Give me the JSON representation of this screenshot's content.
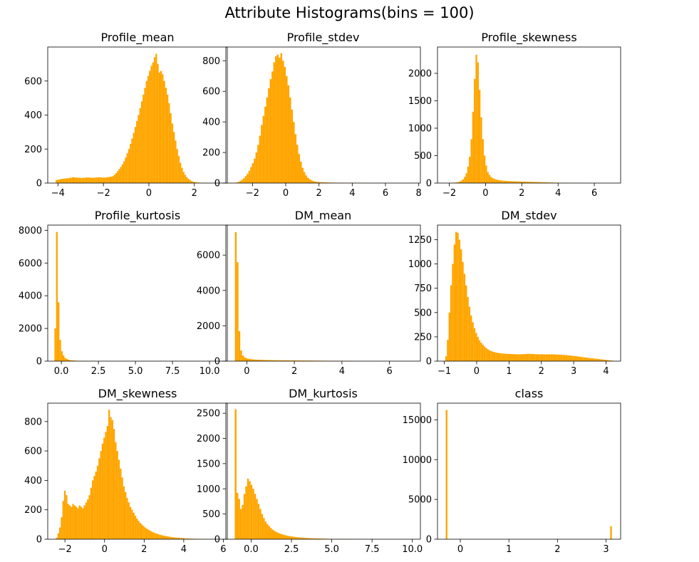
{
  "figure_title": "Attribute Histograms(bins = 100)",
  "bar_color": "#FFA500",
  "chart_data": [
    {
      "type": "bar",
      "title": "Profile_mean",
      "xlim": [
        -4.45,
        3.45
      ],
      "ylim": [
        0,
        800
      ],
      "xticks": [
        -4,
        -2,
        0,
        2
      ],
      "xtick_labels": [
        "−4",
        "−2",
        "0",
        "2"
      ],
      "yticks": [
        0,
        200,
        400,
        600
      ],
      "ytick_labels": [
        "0",
        "200",
        "400",
        "600"
      ],
      "bin_edges": [
        -4.1,
        2.98
      ],
      "bins": 100,
      "counts": [
        18,
        20,
        22,
        24,
        25,
        26,
        28,
        28,
        30,
        32,
        33,
        34,
        33,
        32,
        31,
        30,
        30,
        31,
        32,
        33,
        33,
        32,
        31,
        31,
        32,
        33,
        34,
        34,
        33,
        32,
        32,
        33,
        35,
        36,
        38,
        40,
        48,
        58,
        70,
        82,
        95,
        110,
        128,
        150,
        175,
        200,
        230,
        262,
        295,
        330,
        365,
        400,
        440,
        480,
        520,
        560,
        600,
        630,
        660,
        690,
        710,
        740,
        760,
        700,
        650,
        660,
        640,
        600,
        560,
        520,
        470,
        410,
        350,
        300,
        250,
        200,
        160,
        120,
        90,
        65,
        48,
        35,
        25,
        18,
        12,
        8,
        6,
        4,
        3,
        2,
        2,
        1,
        1,
        1,
        1,
        0,
        0,
        0,
        0,
        1
      ]
    },
    {
      "type": "bar",
      "title": "Profile_stdev",
      "xlim": [
        -3.6,
        8.1
      ],
      "ylim": [
        0,
        890
      ],
      "xticks": [
        -2,
        0,
        2,
        4,
        6,
        8
      ],
      "xtick_labels": [
        "−2",
        "0",
        "2",
        "4",
        "6",
        "8"
      ],
      "yticks": [
        0,
        200,
        400,
        600,
        800
      ],
      "ytick_labels": [
        "0",
        "200",
        "400",
        "600",
        "800"
      ],
      "bin_edges": [
        -3.1,
        7.6
      ],
      "bins": 100,
      "counts": [
        2,
        4,
        8,
        14,
        22,
        32,
        45,
        60,
        80,
        105,
        130,
        160,
        200,
        250,
        310,
        380,
        440,
        500,
        560,
        620,
        680,
        730,
        790,
        830,
        840,
        820,
        850,
        800,
        760,
        700,
        640,
        560,
        480,
        400,
        320,
        250,
        190,
        140,
        100,
        72,
        50,
        35,
        25,
        18,
        13,
        10,
        8,
        7,
        6,
        5,
        5,
        4,
        4,
        3,
        3,
        3,
        2,
        2,
        2,
        2,
        2,
        2,
        1,
        1,
        1,
        1,
        1,
        1,
        1,
        1,
        1,
        0,
        0,
        1,
        0,
        0,
        0,
        0,
        0,
        0,
        0,
        0,
        0,
        0,
        0,
        0,
        0,
        0,
        0,
        0,
        0,
        0,
        0,
        0,
        0,
        0,
        0,
        0,
        0,
        1
      ]
    },
    {
      "type": "bar",
      "title": "Profile_skewness",
      "xlim": [
        -2.65,
        7.45
      ],
      "ylim": [
        0,
        2480
      ],
      "xticks": [
        -2,
        0,
        2,
        4,
        6
      ],
      "xtick_labels": [
        "−2",
        "0",
        "2",
        "4",
        "6"
      ],
      "yticks": [
        0,
        500,
        1000,
        1500,
        2000
      ],
      "ytick_labels": [
        "0",
        "500",
        "1000",
        "1500",
        "2000"
      ],
      "bin_edges": [
        -2.1,
        7.0
      ],
      "bins": 100,
      "counts": [
        1,
        2,
        3,
        5,
        8,
        12,
        18,
        28,
        45,
        70,
        110,
        180,
        300,
        480,
        800,
        1300,
        1900,
        2340,
        2200,
        1700,
        1200,
        800,
        500,
        320,
        200,
        150,
        110,
        90,
        75,
        65,
        58,
        52,
        48,
        45,
        42,
        40,
        38,
        36,
        34,
        33,
        32,
        31,
        30,
        29,
        28,
        27,
        26,
        25,
        24,
        23,
        22,
        22,
        21,
        20,
        19,
        18,
        17,
        16,
        15,
        14,
        13,
        12,
        11,
        10,
        9,
        8,
        7,
        6,
        5,
        4,
        4,
        3,
        3,
        2,
        2,
        1,
        1,
        1,
        1,
        1,
        1,
        0,
        0,
        0,
        0,
        0,
        0,
        0,
        0,
        0,
        0,
        0,
        0,
        0,
        0,
        0,
        0,
        0,
        0,
        1
      ]
    },
    {
      "type": "bar",
      "title": "Profile_kurtosis",
      "xlim": [
        -0.92,
        11.2
      ],
      "ylim": [
        0,
        8320
      ],
      "xticks": [
        0.0,
        2.5,
        5.0,
        7.5,
        10.0
      ],
      "xtick_labels": [
        "0.0",
        "2.5",
        "5.0",
        "7.5",
        "10.0"
      ],
      "yticks": [
        0,
        2000,
        4000,
        6000,
        8000
      ],
      "ytick_labels": [
        "0",
        "2000",
        "4000",
        "6000",
        "8000"
      ],
      "bin_edges": [
        -0.47,
        10.72
      ],
      "bins": 100,
      "counts": [
        2000,
        7900,
        3600,
        1300,
        600,
        350,
        200,
        130,
        90,
        65,
        50,
        40,
        32,
        26,
        22,
        18,
        15,
        13,
        11,
        10,
        9,
        8,
        7,
        6,
        6,
        5,
        5,
        4,
        4,
        4,
        3,
        3,
        3,
        3,
        2,
        2,
        2,
        2,
        2,
        2,
        2,
        1,
        1,
        1,
        1,
        1,
        1,
        1,
        1,
        1,
        1,
        1,
        1,
        1,
        1,
        1,
        1,
        0,
        0,
        0,
        0,
        0,
        0,
        0,
        0,
        0,
        0,
        0,
        0,
        0,
        0,
        0,
        0,
        0,
        0,
        0,
        0,
        0,
        0,
        0,
        0,
        0,
        0,
        0,
        0,
        0,
        0,
        0,
        0,
        0,
        0,
        0,
        0,
        0,
        0,
        0,
        0,
        0,
        0,
        1
      ]
    },
    {
      "type": "bar",
      "title": "DM_mean",
      "xlim": [
        -0.88,
        7.3
      ],
      "ylim": [
        0,
        7700
      ],
      "xticks": [
        0,
        2,
        4,
        6
      ],
      "xtick_labels": [
        "0",
        "2",
        "4",
        "6"
      ],
      "yticks": [
        0,
        2000,
        4000,
        6000
      ],
      "ytick_labels": [
        "0",
        "2000",
        "4000",
        "6000"
      ],
      "bin_edges": [
        -0.5,
        6.95
      ],
      "bins": 100,
      "counts": [
        7300,
        5600,
        1700,
        600,
        320,
        220,
        170,
        140,
        120,
        105,
        95,
        88,
        82,
        78,
        74,
        70,
        67,
        64,
        62,
        60,
        58,
        56,
        54,
        52,
        50,
        49,
        48,
        47,
        46,
        45,
        44,
        43,
        42,
        41,
        40,
        39,
        38,
        37,
        36,
        35,
        34,
        33,
        32,
        31,
        30,
        29,
        28,
        27,
        26,
        25,
        24,
        23,
        22,
        21,
        20,
        19,
        18,
        17,
        16,
        15,
        14,
        13,
        12,
        11,
        10,
        9,
        8,
        7,
        6,
        5,
        4,
        3,
        3,
        2,
        2,
        2,
        1,
        1,
        1,
        1,
        1,
        1,
        0,
        0,
        0,
        0,
        0,
        0,
        0,
        0,
        0,
        0,
        0,
        0,
        0,
        0,
        0,
        0,
        0,
        0
      ]
    },
    {
      "type": "bar",
      "title": "DM_stdev",
      "xlim": [
        -1.21,
        4.45
      ],
      "ylim": [
        0,
        1400
      ],
      "xticks": [
        -1,
        0,
        1,
        2,
        3,
        4
      ],
      "xtick_labels": [
        "−1",
        "0",
        "1",
        "2",
        "3",
        "4"
      ],
      "yticks": [
        0,
        250,
        500,
        750,
        1000,
        1250
      ],
      "ytick_labels": [
        "0",
        "250",
        "500",
        "750",
        "1000",
        "1250"
      ],
      "bin_edges": [
        -0.97,
        4.2
      ],
      "bins": 100,
      "counts": [
        50,
        220,
        500,
        780,
        1000,
        1200,
        1330,
        1320,
        1250,
        1150,
        1020,
        900,
        780,
        660,
        560,
        470,
        400,
        340,
        290,
        250,
        215,
        190,
        170,
        150,
        135,
        122,
        112,
        104,
        97,
        92,
        88,
        85,
        82,
        80,
        78,
        77,
        76,
        75,
        74,
        73,
        72,
        71,
        70,
        70,
        70,
        71,
        72,
        73,
        74,
        75,
        75,
        74,
        73,
        72,
        71,
        70,
        70,
        70,
        70,
        70,
        70,
        70,
        70,
        70,
        70,
        69,
        68,
        67,
        66,
        65,
        64,
        63,
        62,
        60,
        58,
        56,
        54,
        52,
        50,
        48,
        45,
        42,
        40,
        38,
        36,
        34,
        32,
        30,
        28,
        26,
        24,
        22,
        20,
        18,
        16,
        14,
        12,
        10,
        8,
        6
      ]
    },
    {
      "type": "bar",
      "title": "DM_skewness",
      "xlim": [
        -2.87,
        6.2
      ],
      "ylim": [
        0,
        925
      ],
      "xticks": [
        -2,
        0,
        2,
        4,
        6
      ],
      "xtick_labels": [
        "−2",
        "0",
        "2",
        "4",
        "6"
      ],
      "yticks": [
        0,
        200,
        400,
        600,
        800
      ],
      "ytick_labels": [
        "0",
        "200",
        "400",
        "600",
        "800"
      ],
      "bin_edges": [
        -2.46,
        5.82
      ],
      "bins": 100,
      "counts": [
        10,
        40,
        80,
        150,
        260,
        330,
        300,
        240,
        230,
        220,
        240,
        230,
        220,
        210,
        230,
        220,
        210,
        230,
        250,
        270,
        300,
        350,
        400,
        430,
        460,
        500,
        550,
        600,
        650,
        690,
        730,
        770,
        880,
        830,
        810,
        750,
        660,
        600,
        540,
        480,
        420,
        360,
        320,
        280,
        250,
        220,
        200,
        180,
        160,
        140,
        125,
        110,
        100,
        90,
        80,
        72,
        65,
        58,
        52,
        47,
        42,
        38,
        34,
        31,
        28,
        25,
        23,
        21,
        19,
        17,
        15,
        13,
        12,
        11,
        10,
        9,
        8,
        7,
        6,
        5,
        5,
        4,
        4,
        3,
        3,
        3,
        2,
        2,
        2,
        2,
        1,
        1,
        1,
        1,
        1,
        1,
        1,
        1,
        1,
        1
      ]
    },
    {
      "type": "bar",
      "title": "DM_kurtosis",
      "xlim": [
        -1.57,
        10.5
      ],
      "ylim": [
        0,
        2700
      ],
      "xticks": [
        0.0,
        2.5,
        5.0,
        7.5,
        10.0
      ],
      "xtick_labels": [
        "0.0",
        "2.5",
        "5.0",
        "7.5",
        "10.0"
      ],
      "yticks": [
        0,
        500,
        1000,
        1500,
        2000,
        2500
      ],
      "ytick_labels": [
        "0",
        "500",
        "1000",
        "1500",
        "2000",
        "2500"
      ],
      "bin_edges": [
        -1.02,
        9.95
      ],
      "bins": 100,
      "counts": [
        2580,
        920,
        800,
        600,
        680,
        900,
        1050,
        1200,
        1150,
        1080,
        1000,
        900,
        800,
        700,
        600,
        500,
        420,
        350,
        300,
        260,
        220,
        190,
        165,
        145,
        128,
        113,
        100,
        90,
        80,
        72,
        65,
        59,
        53,
        48,
        44,
        40,
        36,
        33,
        30,
        27,
        25,
        23,
        21,
        19,
        17,
        16,
        15,
        14,
        13,
        12,
        11,
        10,
        9,
        8,
        7,
        7,
        6,
        6,
        5,
        5,
        4,
        4,
        3,
        3,
        3,
        2,
        2,
        2,
        2,
        1,
        1,
        1,
        1,
        1,
        1,
        1,
        1,
        1,
        1,
        1,
        0,
        0,
        0,
        0,
        0,
        0,
        0,
        0,
        0,
        0,
        0,
        0,
        0,
        0,
        0,
        0,
        0,
        0,
        0,
        0
      ]
    },
    {
      "type": "bar",
      "title": "class",
      "xlim": [
        -0.47,
        3.3
      ],
      "ylim": [
        0,
        17100
      ],
      "xticks": [
        0,
        1,
        2,
        3
      ],
      "xtick_labels": [
        "0",
        "1",
        "2",
        "3"
      ],
      "yticks": [
        0,
        5000,
        10000,
        15000
      ],
      "ytick_labels": [
        "0",
        "5000",
        "10000",
        "15000"
      ],
      "bin_edges": [
        -0.3,
        3.12
      ],
      "bins": 100,
      "counts": [
        16250,
        0,
        0,
        0,
        0,
        0,
        0,
        0,
        0,
        0,
        0,
        0,
        0,
        0,
        0,
        0,
        0,
        0,
        0,
        0,
        0,
        0,
        0,
        0,
        0,
        0,
        0,
        0,
        0,
        0,
        0,
        0,
        0,
        0,
        0,
        0,
        0,
        0,
        0,
        0,
        0,
        0,
        0,
        0,
        0,
        0,
        0,
        0,
        0,
        0,
        0,
        0,
        0,
        0,
        0,
        0,
        0,
        0,
        0,
        0,
        0,
        0,
        0,
        0,
        0,
        0,
        0,
        0,
        0,
        0,
        0,
        0,
        0,
        0,
        0,
        0,
        0,
        0,
        0,
        0,
        0,
        0,
        0,
        0,
        0,
        0,
        0,
        0,
        0,
        0,
        0,
        0,
        0,
        0,
        0,
        0,
        0,
        0,
        0,
        1640
      ]
    }
  ]
}
